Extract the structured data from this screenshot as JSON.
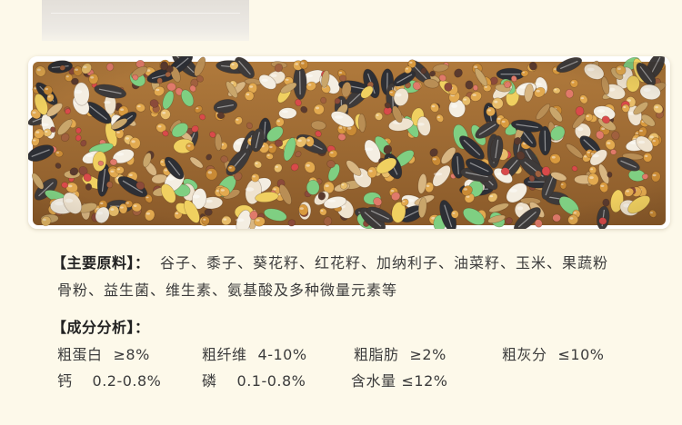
{
  "ingredients": {
    "label": "【主要原料】：",
    "line1": "谷子、黍子、葵花籽、红花籽、加纳利子、油菜籽、玉米、果蔬粉",
    "line2": "骨粉、益生菌、维生素、氨基酸及多种微量元素等"
  },
  "analysis": {
    "label": "【成分分析】：",
    "items": [
      {
        "name": "粗蛋白",
        "value": "≥8%"
      },
      {
        "name": "粗纤维",
        "value": "4-10%"
      },
      {
        "name": "粗脂肪",
        "value": "≥2%"
      },
      {
        "name": "粗灰分",
        "value": "≤10%"
      },
      {
        "name": "钙",
        "value": "0.2-0.8%"
      },
      {
        "name": "磷",
        "value": "0.1-0.8%"
      },
      {
        "name": "含水量",
        "value": "≤12%"
      }
    ]
  },
  "colors": {
    "page_background": "#fdf9ea",
    "seed_millet": "#e2a94f",
    "seed_sunflower": "#2d2f35",
    "seed_safflower": "#f4eee2",
    "seed_canary": "#c9a66b",
    "seed_green": "#7fcf82",
    "seed_red": "#d94a4a"
  }
}
